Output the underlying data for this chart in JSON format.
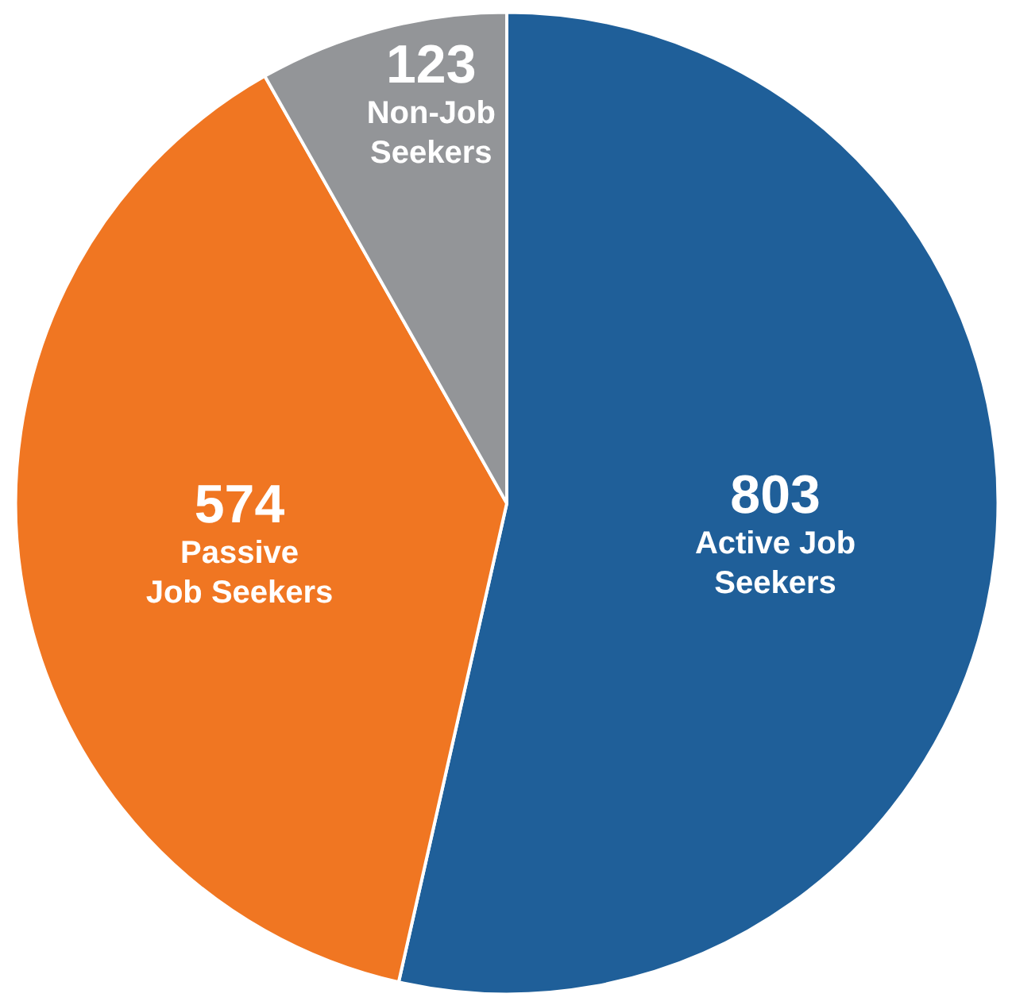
{
  "chart_data": {
    "type": "pie",
    "categories": [
      "Active Job\nSeekers",
      "Passive\nJob Seekers",
      "Non-Job\nSeekers"
    ],
    "values": [
      803,
      574,
      123
    ],
    "colors": [
      "#1f5f99",
      "#f07622",
      "#939598"
    ],
    "data_labels": true
  }
}
